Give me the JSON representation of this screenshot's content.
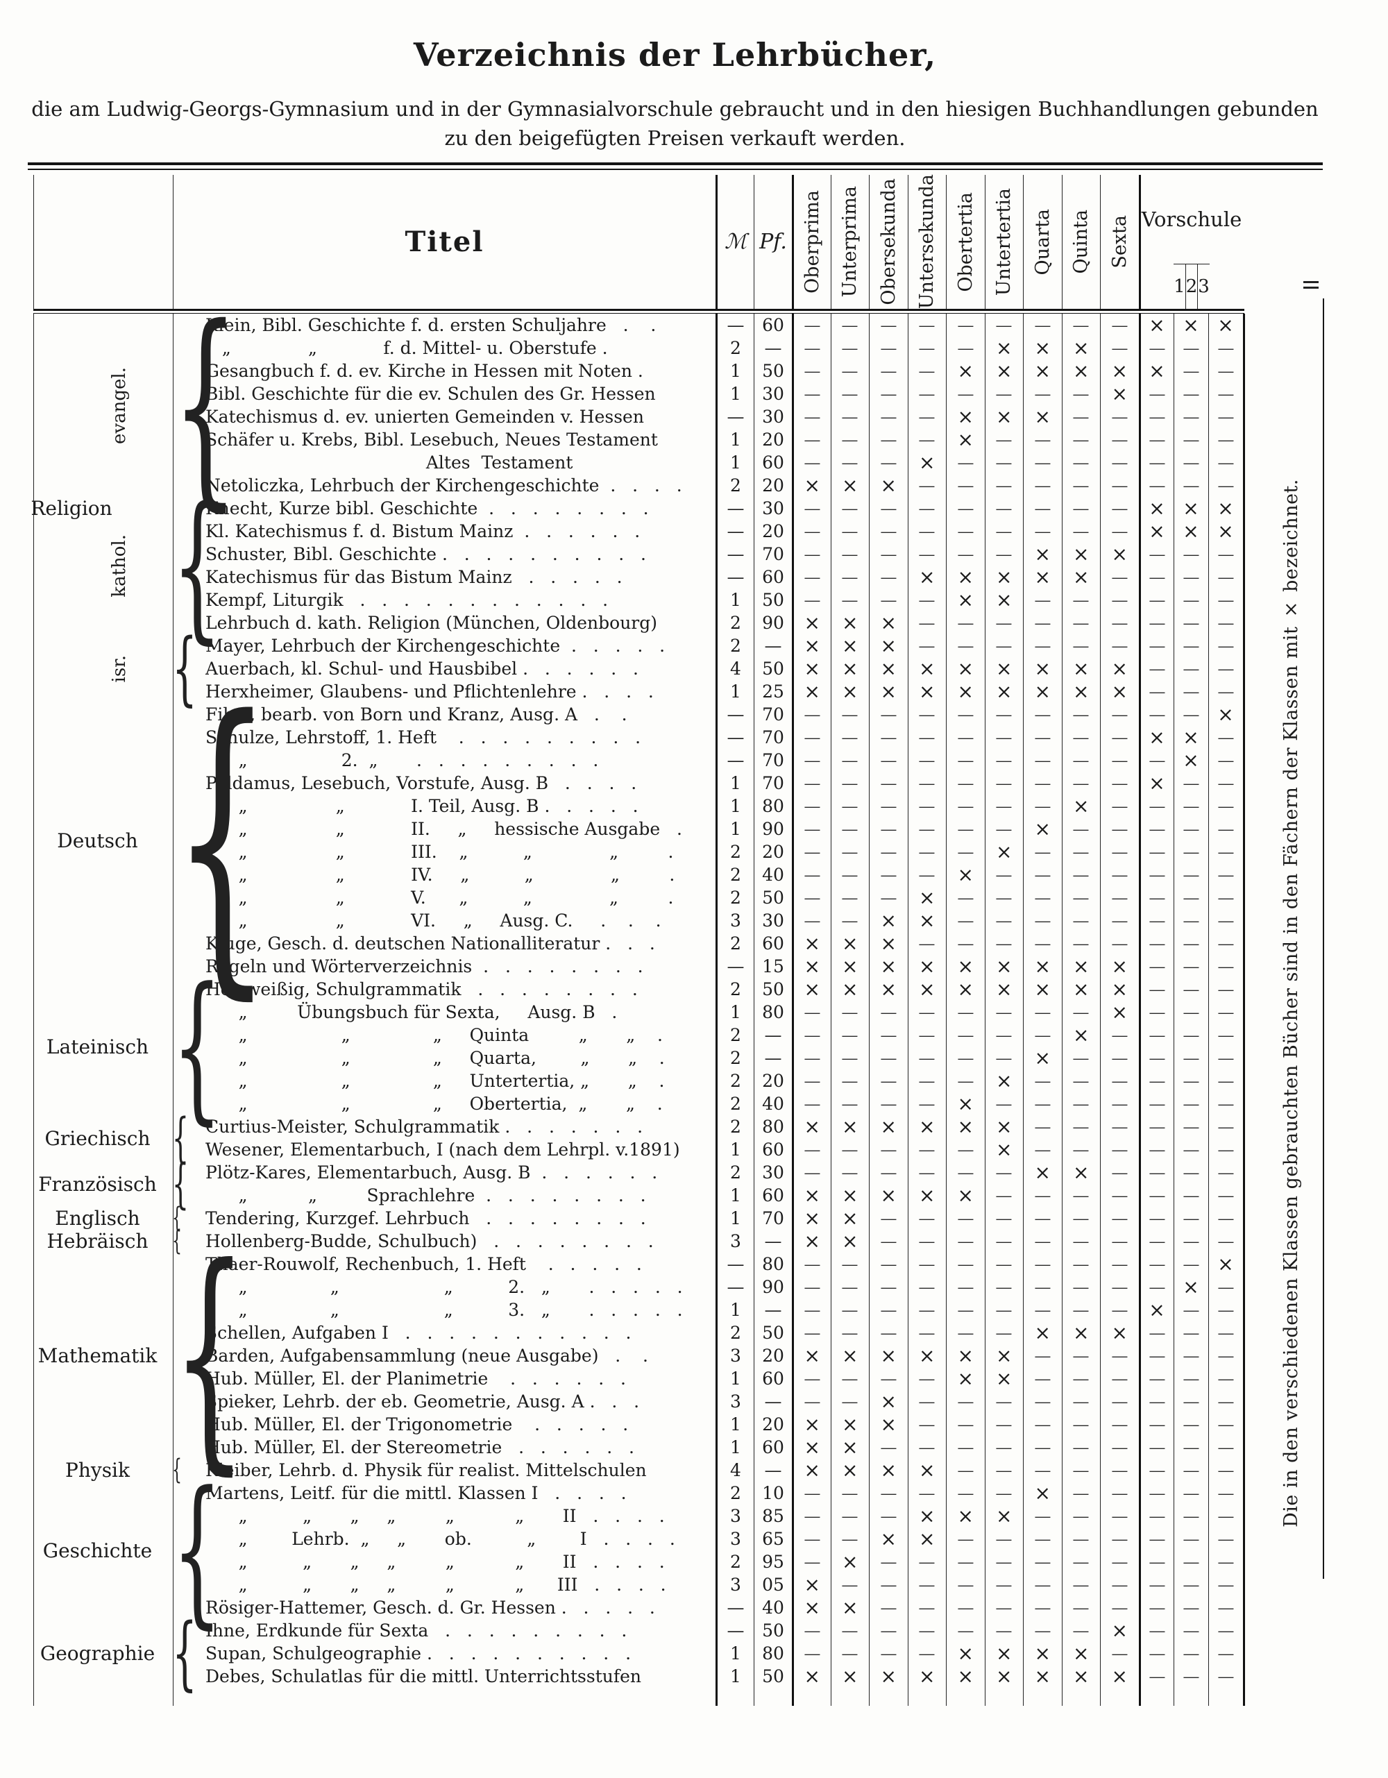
{
  "page": {
    "title": "Verzeichnis der Lehrbücher,",
    "subtitle_line1": "die am Ludwig-Georgs-Gymnasium und in der Gymnasialvorschule gebraucht und in den hiesigen Buchhandlungen gebunden",
    "subtitle_line2": "zu den beigefügten Preisen verkauft werden.",
    "side_note": "Die in den verschiedenen Klassen gebrauchten Bücher sind in den Fächern der Klassen mit × bezeichnet."
  },
  "table": {
    "title_col": "Titel",
    "price_cols": [
      "ℳ",
      "Pf."
    ],
    "class_columns": [
      "Oberprima",
      "Unterprima",
      "Obersekunda",
      "Untersekunda",
      "Obertertia",
      "Untertertia",
      "Quarta",
      "Quinta",
      "Sexta"
    ],
    "vorschule": {
      "label": "Vorschule",
      "cols": [
        "1",
        "2",
        "3"
      ]
    },
    "mark_x": "×",
    "mark_dash": "—",
    "groups": [
      {
        "label": "Religion",
        "from": 1,
        "to": 17,
        "subs": [
          {
            "label": "evangel.",
            "from": 1,
            "to": 8
          },
          {
            "label": "kathol.",
            "from": 9,
            "to": 14
          },
          {
            "label": "isr.",
            "from": 15,
            "to": 17
          }
        ]
      },
      {
        "label": "Deutsch",
        "from": 18,
        "to": 29
      },
      {
        "label": "Lateinisch",
        "from": 30,
        "to": 35
      },
      {
        "label": "Griechisch",
        "from": 36,
        "to": 37
      },
      {
        "label": "Französisch",
        "from": 38,
        "to": 39
      },
      {
        "label": "Englisch",
        "from": 40,
        "to": 40
      },
      {
        "label": "Hebräisch",
        "from": 41,
        "to": 41
      },
      {
        "label": "Mathematik",
        "from": 42,
        "to": 50
      },
      {
        "label": "Physik",
        "from": 51,
        "to": 51
      },
      {
        "label": "Geschichte",
        "from": 52,
        "to": 57
      },
      {
        "label": "Geographie",
        "from": 58,
        "to": 60
      }
    ],
    "rows": [
      {
        "t": "Klein, Bibl. Geschichte f. d. ersten Schuljahre   .    .",
        "m": "—",
        "pf": "60",
        "k": "---------xxx"
      },
      {
        "t": "   „              „            f. d. Mittel- u. Oberstufe .",
        "m": "2",
        "pf": "—",
        "k": "-----xxx----"
      },
      {
        "t": "Gesangbuch f. d. ev. Kirche in Hessen mit Noten .",
        "m": "1",
        "pf": "50",
        "k": "----xxxxxx--"
      },
      {
        "t": "Bibl. Geschichte für die ev. Schulen des Gr. Hessen",
        "m": "1",
        "pf": "30",
        "k": "--------x---"
      },
      {
        "t": "Katechismus d. ev. unierten Gemeinden v. Hessen",
        "m": "—",
        "pf": "30",
        "k": "----xxx-----"
      },
      {
        "t": "Schäfer u. Krebs, Bibl. Lesebuch, Neues Testament",
        "m": "1",
        "pf": "20",
        "k": "----x-------"
      },
      {
        "t": "                                        Altes  Testament",
        "m": "1",
        "pf": "60",
        "k": "---x--------"
      },
      {
        "t": "Netoliczka, Lehrbuch der Kirchengeschichte  .   .   .   .",
        "m": "2",
        "pf": "20",
        "k": "xxx---------"
      },
      {
        "t": "Knecht, Kurze bibl. Geschichte  .   .   .   .   .   .   .   .",
        "m": "—",
        "pf": "30",
        "k": "---------xxx"
      },
      {
        "t": "Kl. Katechismus f. d. Bistum Mainz  .   .   .   .   .   .",
        "m": "—",
        "pf": "20",
        "k": "---------xxx"
      },
      {
        "t": "Schuster, Bibl. Geschichte .   .   .   .   .   .   .   .   .   .",
        "m": "—",
        "pf": "70",
        "k": "------xxx---"
      },
      {
        "t": "Katechismus für das Bistum Mainz   .   .   .   .   .",
        "m": "—",
        "pf": "60",
        "k": "---xxxxx----"
      },
      {
        "t": "Kempf, Liturgik   .   .   .   .   .   .   .   .   .   .   .   .",
        "m": "1",
        "pf": "50",
        "k": "----xx------"
      },
      {
        "t": "Lehrbuch d. kath. Religion (München, Oldenbourg)",
        "m": "2",
        "pf": "90",
        "k": "xxx---------"
      },
      {
        "t": "Mayer, Lehrbuch der Kirchengeschichte  .   .   .   .   .",
        "m": "2",
        "pf": "—",
        "k": "xxx---------"
      },
      {
        "t": "Auerbach, kl. Schul- und Hausbibel .   .   .   .   .   .",
        "m": "4",
        "pf": "50",
        "k": "xxxxxxxxx---"
      },
      {
        "t": "Herxheimer, Glaubens- und Pflichtenlehre .   .   .   .",
        "m": "1",
        "pf": "25",
        "k": "xxxxxxxxx---"
      },
      {
        "t": "Fibel, bearb. von Born und Kranz, Ausg. A   .    .",
        "m": "—",
        "pf": "70",
        "k": "-----------x"
      },
      {
        "t": "Schulze, Lehrstoff, 1. Heft    .   .   .   .   .   .   .   .   .",
        "m": "—",
        "pf": "70",
        "k": "---------xx-"
      },
      {
        "t": "      „                 2.  „       .   .   .   .   .   .   .   .   .",
        "m": "—",
        "pf": "70",
        "k": "----------x-"
      },
      {
        "t": "Paldamus, Lesebuch, Vorstufe, Ausg. B   .   .   .   .",
        "m": "1",
        "pf": "70",
        "k": "---------x--"
      },
      {
        "t": "      „                „            I. Teil, Ausg. B .   .   .   .   .",
        "m": "1",
        "pf": "80",
        "k": "-------x----"
      },
      {
        "t": "      „                „            II.     „     hessische Ausgabe   .",
        "m": "1",
        "pf": "90",
        "k": "------x-----"
      },
      {
        "t": "      „                „            III.    „          „              „         .",
        "m": "2",
        "pf": "20",
        "k": "-----x------"
      },
      {
        "t": "      „                „            IV.     „          „              „         .",
        "m": "2",
        "pf": "40",
        "k": "----x-------"
      },
      {
        "t": "      „                „            V.      „          „              „         .",
        "m": "2",
        "pf": "50",
        "k": "---x--------"
      },
      {
        "t": "      „                „            VI.     „     Ausg. C.     .    .    .",
        "m": "3",
        "pf": "30",
        "k": "--xx--------"
      },
      {
        "t": "Kluge, Gesch. d. deutschen Nationalliteratur .   .   .",
        "m": "2",
        "pf": "60",
        "k": "xxx---------"
      },
      {
        "t": "Regeln und Wörterverzeichnis  .   .   .   .   .   .   .   .",
        "m": "—",
        "pf": "15",
        "k": "xxxxxxxxx---"
      },
      {
        "t": "Holzweißig, Schulgrammatik   .   .   .   .   .   .   .   .",
        "m": "2",
        "pf": "50",
        "k": "xxxxxxxxx---"
      },
      {
        "t": "      „         Übungsbuch für Sexta,     Ausg. B   .",
        "m": "1",
        "pf": "80",
        "k": "--------x---"
      },
      {
        "t": "      „                 „               „     Quinta         „       „    .",
        "m": "2",
        "pf": "—",
        "k": "-------x----"
      },
      {
        "t": "      „                 „               „     Quarta,        „       „    .",
        "m": "2",
        "pf": "—",
        "k": "------x-----"
      },
      {
        "t": "      „                 „               „     Untertertia, „       „    .",
        "m": "2",
        "pf": "20",
        "k": "-----x------"
      },
      {
        "t": "      „                 „               „     Obertertia,  „       „    .",
        "m": "2",
        "pf": "40",
        "k": "----x-------"
      },
      {
        "t": "Curtius-Meister, Schulgrammatik .   .   .   .   .   .   .",
        "m": "2",
        "pf": "80",
        "k": "xxxxxx------"
      },
      {
        "t": "Wesener, Elementarbuch, I (nach dem Lehrpl. v.1891)",
        "m": "1",
        "pf": "60",
        "k": "-----x------"
      },
      {
        "t": "Plötz-Kares, Elementarbuch, Ausg. B  .   .   .   .   .   .",
        "m": "2",
        "pf": "30",
        "k": "------xx----"
      },
      {
        "t": "      „           „         Sprachlehre  .   .   .   .   .   .   .   .",
        "m": "1",
        "pf": "60",
        "k": "xxxxx-------"
      },
      {
        "t": "Tendering, Kurzgef. Lehrbuch   .   .   .   .   .   .   .   .",
        "m": "1",
        "pf": "70",
        "k": "xx----------"
      },
      {
        "t": "Hollenberg-Budde, Schulbuch)   .   .   .   .   .   .   .   .",
        "m": "3",
        "pf": "—",
        "k": "xx----------"
      },
      {
        "t": "Thaer-Rouwolf, Rechenbuch, 1. Heft    .   .   .   .   .",
        "m": "—",
        "pf": "80",
        "k": "-----------x"
      },
      {
        "t": "      „               „                   „          2.   „       .   .   .   .   .",
        "m": "—",
        "pf": "90",
        "k": "----------x-"
      },
      {
        "t": "      „               „                   „          3.   „       .   .   .   .   .",
        "m": "1",
        "pf": "—",
        "k": "---------x--"
      },
      {
        "t": "Schellen, Aufgaben I   .   .   .   .   .   .   .   .   .   .   .",
        "m": "2",
        "pf": "50",
        "k": "------xxx---"
      },
      {
        "t": "Barden, Aufgabensammlung (neue Ausgabe)   .    .",
        "m": "3",
        "pf": "20",
        "k": "xxxxxx------"
      },
      {
        "t": "Hub. Müller, El. der Planimetrie    .   .   .   .   .   .",
        "m": "1",
        "pf": "60",
        "k": "----xx------"
      },
      {
        "t": "Spieker, Lehrb. der eb. Geometrie, Ausg. A .   .   .",
        "m": "3",
        "pf": "—",
        "k": "--x---------"
      },
      {
        "t": "Hub. Müller, El. der Trigonometrie    .   .   .   .   .",
        "m": "1",
        "pf": "20",
        "k": "xxx---------"
      },
      {
        "t": "Hub. Müller, El. der Stereometrie   .   .   .   .   .   .",
        "m": "1",
        "pf": "60",
        "k": "xx----------"
      },
      {
        "t": "Kleiber, Lehrb. d. Physik für realist. Mittelschulen",
        "m": "4",
        "pf": "—",
        "k": "xxxx--------"
      },
      {
        "t": "Martens, Leitf. für die mittl. Klassen I   .   .   .   .",
        "m": "2",
        "pf": "10",
        "k": "------x-----"
      },
      {
        "t": "      „          „       „     „         „           „       II   .   .   .   .",
        "m": "3",
        "pf": "85",
        "k": "---xxx------"
      },
      {
        "t": "      „        Lehrb.  „     „       ob.          „        I   .   .   .   .",
        "m": "3",
        "pf": "65",
        "k": "--xx--------"
      },
      {
        "t": "      „          „       „     „         „           „       II   .   .   .   .",
        "m": "2",
        "pf": "95",
        "k": "-x----------"
      },
      {
        "t": "      „          „       „     „         „           „      III   .   .   .   .",
        "m": "3",
        "pf": "05",
        "k": "x-----------"
      },
      {
        "t": "Rösiger-Hattemer, Gesch. d. Gr. Hessen .   .   .   .   .",
        "m": "—",
        "pf": "40",
        "k": "xx----------"
      },
      {
        "t": "Ihne, Erdkunde für Sexta   .   .   .   .   .   .   .   .   .",
        "m": "—",
        "pf": "50",
        "k": "--------x---"
      },
      {
        "t": "Supan, Schulgeographie .   .   .   .   .   .   .   .   .   .",
        "m": "1",
        "pf": "80",
        "k": "----xxxx----"
      },
      {
        "t": "Debes, Schulatlas für die mittl. Unterrichtsstufen",
        "m": "1",
        "pf": "50",
        "k": "xxxxxxxxx---"
      }
    ]
  }
}
